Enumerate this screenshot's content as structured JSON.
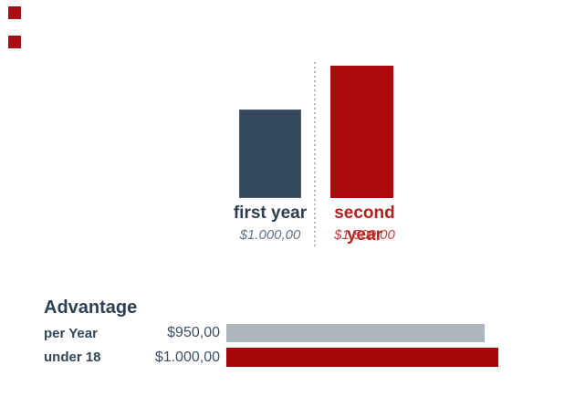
{
  "decor": {
    "top_left_squares": {
      "count": 2,
      "color": "#a50f0f"
    }
  },
  "colors": {
    "first_year_bar": "#34495e",
    "second_year_bar": "#ad0a0b",
    "advantage_bar_grey": "#aeb6bf",
    "advantage_bar_red": "#a50808",
    "divider": "#b9bcbe",
    "first_year_label": "#2c3e50",
    "second_year_label": "#b3221d",
    "first_year_value": "#5d7490",
    "second_year_value": "#c2423a",
    "heading_text": "#2e4154"
  },
  "chart_data": [
    {
      "type": "bar",
      "orientation": "vertical",
      "title": "",
      "categories": [
        "first year",
        "second year"
      ],
      "values": [
        1000,
        1500
      ],
      "value_labels": [
        "$1.000,00",
        "$1.500,00"
      ],
      "colors": [
        "#34495e",
        "#ad0a0b"
      ],
      "ylim": [
        0,
        1500
      ],
      "grid": false,
      "axes_visible": false,
      "annotations": "vertical dotted divider line between the two bars"
    },
    {
      "type": "bar",
      "orientation": "horizontal",
      "title": "Advantage",
      "categories": [
        "per Year",
        "under 18"
      ],
      "values": [
        950,
        1000
      ],
      "value_labels": [
        "$950,00",
        "$1.000,00"
      ],
      "colors": [
        "#aeb6bf",
        "#a50808"
      ],
      "xlim": [
        0,
        1000
      ],
      "grid": false,
      "axes_visible": false
    }
  ]
}
